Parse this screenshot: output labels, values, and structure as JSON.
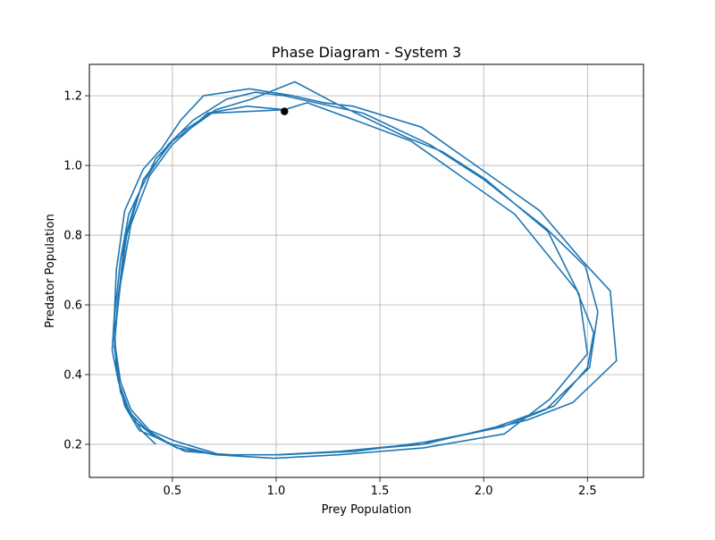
{
  "chart_data": {
    "type": "line",
    "title": "Phase Diagram - System 3",
    "xlabel": "Prey Population",
    "ylabel": "Predator Population",
    "xlim": [
      0.1,
      2.77
    ],
    "ylim": [
      0.105,
      1.29
    ],
    "xticks": [
      0.5,
      1.0,
      1.5,
      2.0,
      2.5
    ],
    "xtick_labels": [
      "0.5",
      "1.0",
      "1.5",
      "2.0",
      "2.5"
    ],
    "yticks": [
      0.2,
      0.4,
      0.6,
      0.8,
      1.0,
      1.2
    ],
    "ytick_labels": [
      "0.2",
      "0.4",
      "0.6",
      "0.8",
      "1.0",
      "1.2"
    ],
    "grid": true,
    "series": [
      {
        "color": "#1f77b4",
        "points": [
          [
            0.42,
            0.2
          ],
          [
            0.35,
            0.24
          ],
          [
            0.29,
            0.3
          ],
          [
            0.24,
            0.38
          ],
          [
            0.21,
            0.47
          ],
          [
            0.22,
            0.57
          ],
          [
            0.23,
            0.7
          ],
          [
            0.27,
            0.87
          ],
          [
            0.36,
            0.99
          ],
          [
            0.45,
            1.05
          ],
          [
            0.54,
            1.13
          ],
          [
            0.65,
            1.2
          ],
          [
            0.87,
            1.22
          ],
          [
            1.08,
            1.2
          ],
          [
            1.23,
            1.18
          ],
          [
            1.37,
            1.17
          ],
          [
            1.7,
            1.11
          ],
          [
            2.01,
            0.98
          ],
          [
            2.27,
            0.87
          ],
          [
            2.47,
            0.73
          ],
          [
            2.61,
            0.64
          ],
          [
            2.64,
            0.44
          ],
          [
            2.5,
            0.36
          ],
          [
            2.43,
            0.32
          ],
          [
            2.21,
            0.27
          ],
          [
            2.01,
            0.24
          ],
          [
            1.66,
            0.2
          ],
          [
            1.31,
            0.18
          ],
          [
            1.0,
            0.17
          ],
          [
            0.71,
            0.17
          ],
          [
            0.5,
            0.2
          ],
          [
            0.34,
            0.24
          ],
          [
            0.27,
            0.31
          ],
          [
            0.23,
            0.41
          ],
          [
            0.22,
            0.56
          ],
          [
            0.25,
            0.73
          ],
          [
            0.29,
            0.86
          ],
          [
            0.37,
            0.96
          ],
          [
            0.48,
            1.06
          ],
          [
            0.6,
            1.13
          ],
          [
            0.76,
            1.19
          ],
          [
            0.9,
            1.21
          ],
          [
            1.04,
            1.2
          ],
          [
            1.42,
            1.15
          ],
          [
            1.74,
            1.06
          ],
          [
            2.0,
            0.96
          ],
          [
            2.3,
            0.82
          ],
          [
            2.49,
            0.71
          ],
          [
            2.55,
            0.58
          ],
          [
            2.51,
            0.42
          ],
          [
            2.3,
            0.3
          ],
          [
            2.09,
            0.25
          ],
          [
            1.77,
            0.21
          ],
          [
            1.38,
            0.18
          ],
          [
            1.02,
            0.17
          ],
          [
            0.78,
            0.17
          ],
          [
            0.56,
            0.18
          ],
          [
            0.42,
            0.22
          ],
          [
            0.31,
            0.27
          ],
          [
            0.25,
            0.35
          ],
          [
            0.22,
            0.48
          ],
          [
            0.24,
            0.62
          ],
          [
            0.27,
            0.79
          ],
          [
            0.33,
            0.91
          ],
          [
            0.42,
            1.02
          ],
          [
            0.53,
            1.09
          ],
          [
            0.71,
            1.16
          ],
          [
            0.88,
            1.19
          ],
          [
            1.09,
            1.24
          ],
          [
            1.28,
            1.18
          ],
          [
            1.63,
            1.08
          ],
          [
            1.8,
            1.04
          ],
          [
            2.01,
            0.96
          ],
          [
            2.31,
            0.81
          ],
          [
            2.46,
            0.63
          ],
          [
            2.5,
            0.46
          ],
          [
            2.32,
            0.33
          ],
          [
            2.1,
            0.23
          ],
          [
            1.71,
            0.19
          ],
          [
            1.3,
            0.17
          ],
          [
            0.99,
            0.16
          ],
          [
            0.71,
            0.17
          ],
          [
            0.52,
            0.19
          ],
          [
            0.38,
            0.24
          ],
          [
            0.28,
            0.3
          ],
          [
            0.24,
            0.38
          ],
          [
            0.22,
            0.5
          ],
          [
            0.25,
            0.66
          ],
          [
            0.3,
            0.83
          ],
          [
            0.39,
            0.97
          ],
          [
            0.5,
            1.06
          ],
          [
            0.67,
            1.15
          ],
          [
            0.86,
            1.17
          ],
          [
            1.04,
            1.16
          ],
          [
            1.15,
            1.18
          ],
          [
            1.38,
            1.13
          ],
          [
            1.65,
            1.07
          ],
          [
            2.15,
            0.86
          ],
          [
            2.45,
            0.64
          ],
          [
            2.53,
            0.52
          ],
          [
            2.5,
            0.42
          ],
          [
            2.34,
            0.31
          ],
          [
            2.06,
            0.25
          ],
          [
            1.71,
            0.2
          ],
          [
            1.31,
            0.18
          ],
          [
            1.02,
            0.17
          ],
          [
            0.73,
            0.17
          ],
          [
            0.51,
            0.21
          ],
          [
            0.39,
            0.24
          ],
          [
            0.3,
            0.3
          ],
          [
            0.25,
            0.38
          ],
          [
            0.22,
            0.5
          ],
          [
            0.24,
            0.63
          ],
          [
            0.28,
            0.8
          ],
          [
            0.36,
            0.96
          ],
          [
            0.5,
            1.07
          ],
          [
            0.69,
            1.15
          ],
          [
            1.04,
            1.16
          ]
        ]
      }
    ],
    "marker": {
      "point": [
        1.04,
        1.155
      ],
      "color": "#000000"
    }
  }
}
